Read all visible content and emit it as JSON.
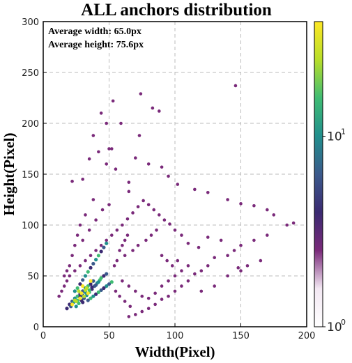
{
  "chart_data": {
    "type": "heatmap",
    "subtype": "2d-density-scatter",
    "title": "ALL anchors distribution",
    "xlabel": "Width(Pixel)",
    "ylabel": "Height(Pixel)",
    "xlim": [
      0,
      200
    ],
    "ylim": [
      0,
      300
    ],
    "xticks": [
      0,
      50,
      100,
      150,
      200
    ],
    "yticks": [
      0,
      50,
      100,
      150,
      200,
      250,
      300
    ],
    "grid": true,
    "annotations": [
      "Average width: 65.0px",
      "Average height: 75.6px"
    ],
    "colorbar": {
      "scale": "log",
      "range": [
        1,
        40
      ],
      "ticks": [
        {
          "value": 1,
          "base": "10",
          "exp": "0"
        },
        {
          "value": 10,
          "base": "10",
          "exp": "1"
        }
      ],
      "colormap": [
        "#ffffff",
        "#f3e8f3",
        "#7a2a7a",
        "#3b2a72",
        "#3b5a8c",
        "#218f8d",
        "#3fbc73",
        "#b8de29",
        "#fde725"
      ]
    },
    "points": [
      [
        146,
        237
      ],
      [
        74,
        229
      ],
      [
        59,
        200
      ],
      [
        48,
        200
      ],
      [
        38,
        188
      ],
      [
        73,
        188
      ],
      [
        52,
        175
      ],
      [
        48,
        160
      ],
      [
        65,
        142
      ],
      [
        22,
        143
      ],
      [
        30,
        145
      ],
      [
        55,
        155
      ],
      [
        90,
        157
      ],
      [
        102,
        140
      ],
      [
        65,
        133
      ],
      [
        35,
        165
      ],
      [
        42,
        172
      ],
      [
        83,
        215
      ],
      [
        53,
        222
      ],
      [
        44,
        210
      ],
      [
        88,
        212
      ],
      [
        50,
        175
      ],
      [
        70,
        166
      ],
      [
        80,
        160
      ],
      [
        95,
        148
      ],
      [
        115,
        135
      ],
      [
        125,
        132
      ],
      [
        140,
        125
      ],
      [
        150,
        121
      ],
      [
        160,
        119
      ],
      [
        170,
        115
      ],
      [
        175,
        110
      ],
      [
        185,
        100
      ],
      [
        190,
        102
      ],
      [
        170,
        90
      ],
      [
        160,
        85
      ],
      [
        150,
        80
      ],
      [
        145,
        75
      ],
      [
        140,
        70
      ],
      [
        130,
        68
      ],
      [
        125,
        60
      ],
      [
        120,
        55
      ],
      [
        115,
        52
      ],
      [
        110,
        45
      ],
      [
        105,
        40
      ],
      [
        100,
        35
      ],
      [
        95,
        30
      ],
      [
        90,
        27
      ],
      [
        85,
        22
      ],
      [
        80,
        18
      ],
      [
        75,
        15
      ],
      [
        70,
        12
      ],
      [
        65,
        10
      ],
      [
        120,
        35
      ],
      [
        130,
        40
      ],
      [
        140,
        50
      ],
      [
        150,
        55
      ],
      [
        155,
        60
      ],
      [
        165,
        65
      ],
      [
        148,
        58
      ],
      [
        135,
        85
      ],
      [
        125,
        88
      ],
      [
        118,
        78
      ],
      [
        110,
        82
      ],
      [
        105,
        90
      ],
      [
        100,
        95
      ],
      [
        96,
        101
      ],
      [
        92,
        105
      ],
      [
        88,
        110
      ],
      [
        84,
        115
      ],
      [
        80,
        120
      ],
      [
        76,
        124
      ],
      [
        72,
        118
      ],
      [
        68,
        112
      ],
      [
        64,
        106
      ],
      [
        60,
        100
      ],
      [
        56,
        95
      ],
      [
        52,
        90
      ],
      [
        48,
        85
      ],
      [
        44,
        80
      ],
      [
        40,
        75
      ],
      [
        36,
        70
      ],
      [
        32,
        65
      ],
      [
        28,
        60
      ],
      [
        24,
        55
      ],
      [
        20,
        50
      ],
      [
        18,
        45
      ],
      [
        16,
        40
      ],
      [
        14,
        35
      ],
      [
        12,
        30
      ],
      [
        30,
        85
      ],
      [
        35,
        95
      ],
      [
        40,
        105
      ],
      [
        45,
        115
      ],
      [
        50,
        120
      ],
      [
        38,
        125
      ],
      [
        32,
        110
      ],
      [
        28,
        100
      ],
      [
        26,
        90
      ],
      [
        24,
        80
      ],
      [
        22,
        70
      ],
      [
        20,
        60
      ],
      [
        18,
        55
      ],
      [
        16,
        50
      ],
      [
        60,
        45
      ],
      [
        65,
        40
      ],
      [
        70,
        35
      ],
      [
        75,
        30
      ],
      [
        80,
        28
      ],
      [
        85,
        33
      ],
      [
        90,
        40
      ],
      [
        95,
        45
      ],
      [
        100,
        50
      ],
      [
        105,
        55
      ],
      [
        110,
        60
      ],
      [
        62,
        70
      ],
      [
        68,
        75
      ],
      [
        72,
        80
      ],
      [
        78,
        85
      ],
      [
        82,
        90
      ],
      [
        86,
        95
      ],
      [
        90,
        70
      ],
      [
        94,
        65
      ],
      [
        98,
        60
      ],
      [
        102,
        65
      ],
      [
        55,
        35
      ],
      [
        58,
        30
      ],
      [
        62,
        25
      ],
      [
        66,
        20
      ],
      [
        54,
        60
      ],
      [
        56,
        65
      ],
      [
        58,
        75
      ],
      [
        60,
        80
      ],
      [
        62,
        85
      ],
      [
        64,
        90
      ]
    ],
    "dense_points": [
      [
        20,
        22
      ],
      [
        22,
        25
      ],
      [
        24,
        28
      ],
      [
        26,
        30
      ],
      [
        28,
        32
      ],
      [
        30,
        35
      ],
      [
        32,
        38
      ],
      [
        34,
        40
      ],
      [
        36,
        42
      ],
      [
        38,
        45
      ],
      [
        25,
        20
      ],
      [
        27,
        23
      ],
      [
        29,
        26
      ],
      [
        31,
        28
      ],
      [
        33,
        31
      ],
      [
        35,
        34
      ],
      [
        37,
        37
      ],
      [
        39,
        40
      ],
      [
        41,
        43
      ],
      [
        43,
        46
      ],
      [
        18,
        18
      ],
      [
        21,
        20
      ],
      [
        23,
        24
      ],
      [
        26,
        26
      ],
      [
        28,
        29
      ],
      [
        30,
        31
      ],
      [
        32,
        34
      ],
      [
        35,
        36
      ],
      [
        37,
        39
      ],
      [
        40,
        41
      ],
      [
        42,
        44
      ],
      [
        44,
        48
      ],
      [
        46,
        50
      ],
      [
        48,
        52
      ],
      [
        24,
        35
      ],
      [
        26,
        38
      ],
      [
        28,
        42
      ],
      [
        30,
        46
      ],
      [
        32,
        50
      ],
      [
        34,
        54
      ],
      [
        36,
        58
      ],
      [
        38,
        62
      ],
      [
        40,
        66
      ],
      [
        42,
        70
      ],
      [
        44,
        74
      ],
      [
        46,
        78
      ],
      [
        48,
        82
      ],
      [
        36,
        28
      ],
      [
        40,
        32
      ],
      [
        44,
        36
      ],
      [
        48,
        40
      ],
      [
        52,
        44
      ],
      [
        30,
        24
      ],
      [
        34,
        26
      ],
      [
        38,
        30
      ],
      [
        42,
        34
      ],
      [
        46,
        38
      ],
      [
        50,
        42
      ]
    ],
    "bright_points": [
      [
        22,
        22
      ],
      [
        25,
        25
      ],
      [
        28,
        28
      ],
      [
        31,
        30
      ],
      [
        34,
        33
      ],
      [
        27,
        35
      ],
      [
        30,
        40
      ],
      [
        33,
        38
      ],
      [
        36,
        45
      ],
      [
        24,
        26
      ],
      [
        29,
        33
      ],
      [
        32,
        36
      ]
    ]
  }
}
